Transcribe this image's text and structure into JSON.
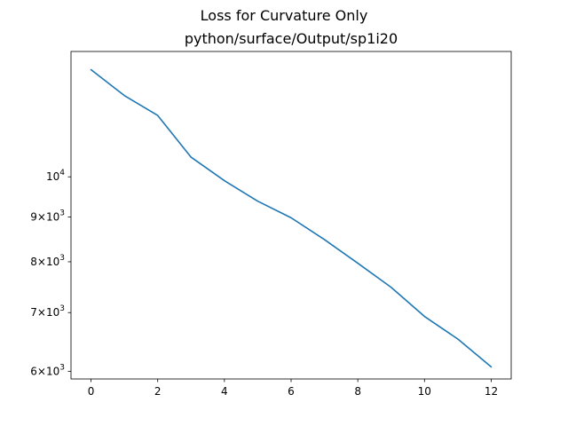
{
  "chart_data": {
    "type": "line",
    "title": "Loss for Curvature Only",
    "subtitle": "python/surface/Output/sp1i20",
    "xlabel": "",
    "ylabel": "",
    "yscale": "log",
    "xlim": [
      -0.6,
      12.6
    ],
    "ylim": [
      5880,
      13900
    ],
    "grid": false,
    "x": [
      0,
      1,
      2,
      3,
      4,
      5,
      6,
      7,
      8,
      9,
      10,
      11,
      12
    ],
    "series": [
      {
        "color": "#1f77b4",
        "values": [
          13250,
          12380,
          11750,
          10530,
          9900,
          9380,
          8980,
          8480,
          7970,
          7480,
          6930,
          6530,
          6070
        ]
      }
    ],
    "x_ticks": [
      {
        "value": 0,
        "label": "0"
      },
      {
        "value": 2,
        "label": "2"
      },
      {
        "value": 4,
        "label": "4"
      },
      {
        "value": 6,
        "label": "6"
      },
      {
        "value": 8,
        "label": "8"
      },
      {
        "value": 10,
        "label": "10"
      },
      {
        "value": 12,
        "label": "12"
      }
    ],
    "y_ticks": [
      {
        "value": 6000,
        "mantissa": "6",
        "base": "10",
        "exp": "3"
      },
      {
        "value": 7000,
        "mantissa": "7",
        "base": "10",
        "exp": "3"
      },
      {
        "value": 8000,
        "mantissa": "8",
        "base": "10",
        "exp": "3"
      },
      {
        "value": 9000,
        "mantissa": "9",
        "base": "10",
        "exp": "3"
      },
      {
        "value": 10000,
        "mantissa": "",
        "base": "10",
        "exp": "4"
      }
    ]
  }
}
